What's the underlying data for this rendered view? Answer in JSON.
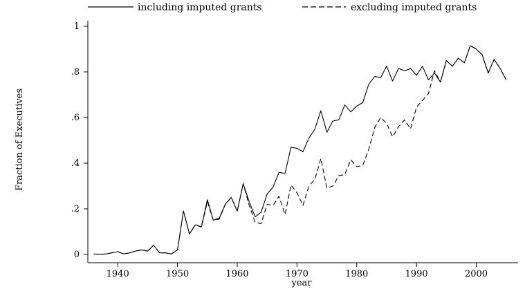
{
  "chart_data": {
    "type": "line",
    "xlabel": "year",
    "ylabel": "Fraction of Executives",
    "xlim": [
      1935,
      2007
    ],
    "ylim": [
      0,
      1
    ],
    "x_ticks": [
      1940,
      1950,
      1960,
      1970,
      1980,
      1990,
      2000
    ],
    "y_ticks": [
      0,
      0.2,
      0.4,
      0.6,
      0.8,
      1
    ],
    "y_tick_labels": [
      "0",
      ".2",
      ".4",
      ".6",
      ".8",
      "1"
    ],
    "legend_position": "top",
    "grid": false,
    "series": [
      {
        "name": "including imputed grants",
        "style": "solid",
        "x": [
          1936,
          1937,
          1938,
          1939,
          1940,
          1941,
          1942,
          1943,
          1944,
          1945,
          1946,
          1947,
          1948,
          1949,
          1950,
          1951,
          1952,
          1953,
          1954,
          1955,
          1956,
          1957,
          1958,
          1959,
          1960,
          1961,
          1962,
          1963,
          1964,
          1965,
          1966,
          1967,
          1968,
          1969,
          1970,
          1971,
          1972,
          1973,
          1974,
          1975,
          1976,
          1977,
          1978,
          1979,
          1980,
          1981,
          1982,
          1983,
          1984,
          1985,
          1986,
          1987,
          1988,
          1989,
          1990,
          1991,
          1992,
          1993,
          1994,
          1995,
          1996,
          1997,
          1998,
          1999,
          2000,
          2001,
          2002,
          2003,
          2004,
          2005
        ],
        "values": [
          0.002,
          0.0,
          0.002,
          0.007,
          0.012,
          0.002,
          0.007,
          0.015,
          0.02,
          0.015,
          0.04,
          0.007,
          0.007,
          0.002,
          0.02,
          0.19,
          0.09,
          0.13,
          0.12,
          0.24,
          0.15,
          0.16,
          0.22,
          0.25,
          0.19,
          0.31,
          0.23,
          0.165,
          0.185,
          0.265,
          0.295,
          0.36,
          0.355,
          0.47,
          0.465,
          0.45,
          0.51,
          0.55,
          0.63,
          0.535,
          0.585,
          0.59,
          0.655,
          0.625,
          0.65,
          0.665,
          0.745,
          0.78,
          0.775,
          0.825,
          0.76,
          0.815,
          0.805,
          0.815,
          0.785,
          0.825,
          0.765,
          0.795,
          0.755,
          0.85,
          0.825,
          0.86,
          0.84,
          0.915,
          0.9,
          0.875,
          0.795,
          0.855,
          0.815,
          0.765
        ]
      },
      {
        "name": "excluding imputed grants",
        "style": "dashed",
        "x": [
          1936,
          1937,
          1938,
          1939,
          1940,
          1941,
          1942,
          1943,
          1944,
          1945,
          1946,
          1947,
          1948,
          1949,
          1950,
          1951,
          1952,
          1953,
          1954,
          1955,
          1956,
          1957,
          1958,
          1959,
          1960,
          1961,
          1962,
          1963,
          1964,
          1965,
          1966,
          1967,
          1968,
          1969,
          1970,
          1971,
          1972,
          1973,
          1974,
          1975,
          1976,
          1977,
          1978,
          1979,
          1980,
          1981,
          1982,
          1983,
          1984,
          1985,
          1986,
          1987,
          1988,
          1989,
          1990,
          1991,
          1992,
          1993,
          1994,
          1995,
          1996,
          1997,
          1998,
          1999,
          2000,
          2001,
          2002,
          2003,
          2004,
          2005
        ],
        "values": [
          0.002,
          0.0,
          0.002,
          0.007,
          0.012,
          0.002,
          0.007,
          0.015,
          0.02,
          0.015,
          0.04,
          0.007,
          0.007,
          0.002,
          0.02,
          0.19,
          0.09,
          0.13,
          0.12,
          0.23,
          0.15,
          0.155,
          0.22,
          0.25,
          0.19,
          0.31,
          0.215,
          0.14,
          0.135,
          0.22,
          0.215,
          0.255,
          0.175,
          0.305,
          0.27,
          0.215,
          0.3,
          0.33,
          0.42,
          0.29,
          0.3,
          0.345,
          0.35,
          0.415,
          0.385,
          0.39,
          0.46,
          0.555,
          0.6,
          0.575,
          0.515,
          0.56,
          0.59,
          0.55,
          0.645,
          0.675,
          0.705,
          0.805,
          0.755,
          0.85,
          0.825,
          0.86,
          0.84,
          0.915,
          0.9,
          0.875,
          0.795,
          0.855,
          0.815,
          0.765
        ]
      }
    ]
  }
}
